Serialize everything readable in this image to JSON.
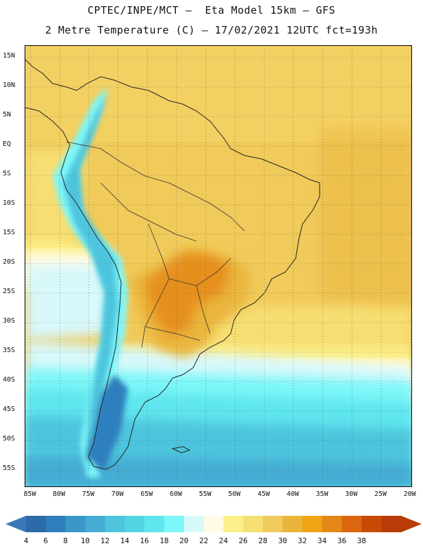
{
  "header": {
    "line1": "CPTEC/INPE/MCT –  Eta Model 15km – GFS",
    "line2": "2 Metre Temperature (C) – 17/02/2021 12UTC fct=193h"
  },
  "map": {
    "latitude_labels": [
      "15N",
      "10N",
      "5N",
      "EQ",
      "5S",
      "10S",
      "15S",
      "20S",
      "25S",
      "30S",
      "35S",
      "40S",
      "45S",
      "50S",
      "55S"
    ],
    "longitude_labels": [
      "85W",
      "80W",
      "75W",
      "70W",
      "65W",
      "60W",
      "55W",
      "50W",
      "45W",
      "40W",
      "35W",
      "30W",
      "25W",
      "20W"
    ]
  },
  "colorbar": {
    "labels": [
      "4",
      "6",
      "8",
      "10",
      "12",
      "14",
      "16",
      "18",
      "20",
      "22",
      "24",
      "26",
      "28",
      "30",
      "32",
      "34",
      "36",
      "38"
    ],
    "colors": [
      "#2d6aa8",
      "#2f7fbe",
      "#3b97c9",
      "#45acd3",
      "#4ec4dd",
      "#52d6e4",
      "#5fe6ee",
      "#7df7f9",
      "#d8f8fa",
      "#fffbe6",
      "#fdf08a",
      "#f7de72",
      "#f0ca5a",
      "#eab53c",
      "#efa511",
      "#e58619",
      "#dc6610",
      "#c94a07",
      "#b83c07"
    ],
    "low_arrow_color": "#3a78b8",
    "high_arrow_color": "#b83c07"
  }
}
